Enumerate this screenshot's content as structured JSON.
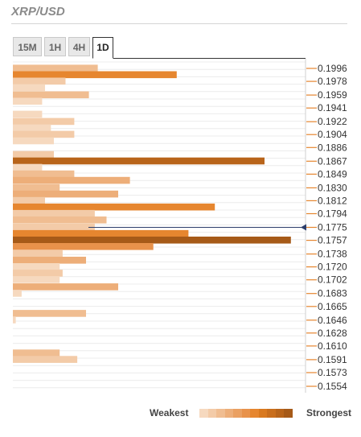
{
  "header": {
    "title": "XRP/USD"
  },
  "tabs": [
    {
      "label": "15M",
      "active": false
    },
    {
      "label": "1H",
      "active": false
    },
    {
      "label": "4H",
      "active": false
    },
    {
      "label": "1D",
      "active": true
    }
  ],
  "legend": {
    "weakest": "Weakest",
    "strongest": "Strongest",
    "scale_colors": [
      "#f6d9bf",
      "#f3cba8",
      "#f0bd91",
      "#edae79",
      "#eaa062",
      "#e8924b",
      "#e6862f",
      "#d9791f",
      "#c96e1c",
      "#b8641a",
      "#a65a18"
    ]
  },
  "chart_data": {
    "type": "bar",
    "orientation": "horizontal",
    "price_labels": [
      "0.1996",
      "0.1978",
      "0.1959",
      "0.1941",
      "0.1922",
      "0.1904",
      "0.1886",
      "0.1867",
      "0.1849",
      "0.1830",
      "0.1812",
      "0.1794",
      "0.1775",
      "0.1757",
      "0.1738",
      "0.1720",
      "0.1702",
      "0.1683",
      "0.1665",
      "0.1646",
      "0.1628",
      "0.1610",
      "0.1591",
      "0.1573",
      "0.1554"
    ],
    "y_range": [
      0.1545,
      0.2005
    ],
    "current_price": 0.1775,
    "bars": [
      {
        "price": 0.1996,
        "strength": 0.29,
        "color": "#f0bd91"
      },
      {
        "price": 0.1987,
        "strength": 0.56,
        "color": "#e6862f"
      },
      {
        "price": 0.1978,
        "strength": 0.18,
        "color": "#f3cba8"
      },
      {
        "price": 0.1969,
        "strength": 0.11,
        "color": "#f6d9bf"
      },
      {
        "price": 0.1959,
        "strength": 0.26,
        "color": "#f0bd91"
      },
      {
        "price": 0.195,
        "strength": 0.1,
        "color": "#f6d9bf"
      },
      {
        "price": 0.1932,
        "strength": 0.1,
        "color": "#f6d9bf"
      },
      {
        "price": 0.1922,
        "strength": 0.21,
        "color": "#f3cba8"
      },
      {
        "price": 0.1913,
        "strength": 0.13,
        "color": "#f6d9bf"
      },
      {
        "price": 0.1904,
        "strength": 0.21,
        "color": "#f3cba8"
      },
      {
        "price": 0.1895,
        "strength": 0.14,
        "color": "#f6d9bf"
      },
      {
        "price": 0.1876,
        "strength": 0.14,
        "color": "#f3cba8"
      },
      {
        "price": 0.1867,
        "strength": 0.86,
        "color": "#b8641a"
      },
      {
        "price": 0.1858,
        "strength": 0.1,
        "color": "#f6d9bf"
      },
      {
        "price": 0.1849,
        "strength": 0.21,
        "color": "#f0bd91"
      },
      {
        "price": 0.184,
        "strength": 0.4,
        "color": "#edae79"
      },
      {
        "price": 0.183,
        "strength": 0.16,
        "color": "#f0bd91"
      },
      {
        "price": 0.1821,
        "strength": 0.36,
        "color": "#edae79"
      },
      {
        "price": 0.1812,
        "strength": 0.11,
        "color": "#f3cba8"
      },
      {
        "price": 0.1803,
        "strength": 0.69,
        "color": "#e6862f"
      },
      {
        "price": 0.1794,
        "strength": 0.28,
        "color": "#f3cba8"
      },
      {
        "price": 0.1785,
        "strength": 0.32,
        "color": "#f0bd91"
      },
      {
        "price": 0.1775,
        "strength": 0.28,
        "color": "#f3cba8"
      },
      {
        "price": 0.1766,
        "strength": 0.6,
        "color": "#e6862f"
      },
      {
        "price": 0.1757,
        "strength": 0.95,
        "color": "#a65a18"
      },
      {
        "price": 0.1748,
        "strength": 0.48,
        "color": "#e8924b"
      },
      {
        "price": 0.1738,
        "strength": 0.17,
        "color": "#f3cba8"
      },
      {
        "price": 0.1729,
        "strength": 0.25,
        "color": "#edae79"
      },
      {
        "price": 0.172,
        "strength": 0.16,
        "color": "#f6d9bf"
      },
      {
        "price": 0.1711,
        "strength": 0.17,
        "color": "#f3cba8"
      },
      {
        "price": 0.1702,
        "strength": 0.16,
        "color": "#f6d9bf"
      },
      {
        "price": 0.1692,
        "strength": 0.36,
        "color": "#edae79"
      },
      {
        "price": 0.1683,
        "strength": 0.03,
        "color": "#f6d9bf"
      },
      {
        "price": 0.1655,
        "strength": 0.25,
        "color": "#f0bd91"
      },
      {
        "price": 0.1646,
        "strength": 0.01,
        "color": "#f6d9bf"
      },
      {
        "price": 0.16,
        "strength": 0.16,
        "color": "#f0bd91"
      },
      {
        "price": 0.1591,
        "strength": 0.22,
        "color": "#f3cba8"
      }
    ]
  }
}
